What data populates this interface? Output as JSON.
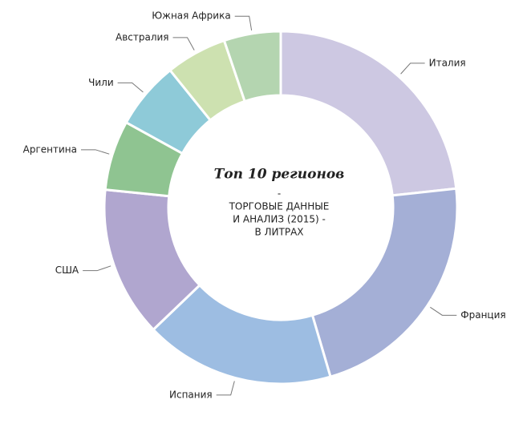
{
  "chart_data": {
    "type": "pie",
    "donut": true,
    "title": "Топ 10 регионов",
    "subtitle": [
      "-",
      "ТОРГОВЫЕ ДАННЫЕ",
      "И АНАЛИЗ (2015) -",
      "В ЛИТРАХ"
    ],
    "categories": [
      "Италия",
      "Франция",
      "Испания",
      "США",
      "Аргентина",
      "Чили",
      "Австралия",
      "Южная Африка"
    ],
    "values": [
      23.3,
      22.2,
      17.4,
      13.8,
      6.4,
      6.2,
      5.6,
      5.2
    ],
    "colors": [
      "#cdc8e2",
      "#a4afd6",
      "#9dbde2",
      "#b0a6cf",
      "#8fc491",
      "#8ecad8",
      "#cde1b0",
      "#b4d5b0"
    ]
  }
}
